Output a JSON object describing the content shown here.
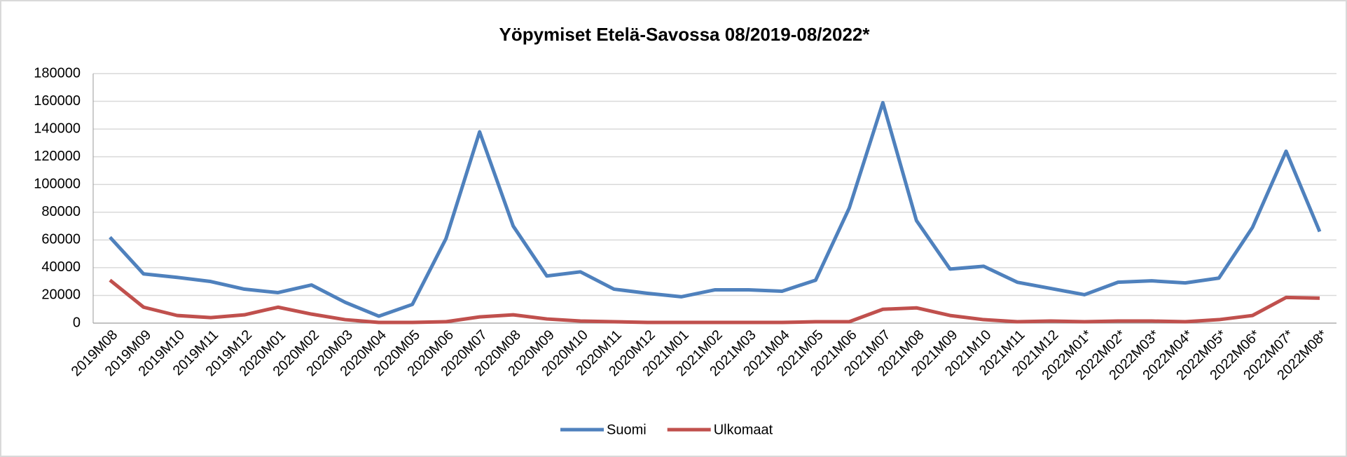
{
  "chart_data": {
    "type": "line",
    "title": "Yöpymiset Etelä-Savossa 08/2019-08/2022*",
    "categories": [
      "2019M08",
      "2019M09",
      "2019M10",
      "2019M11",
      "2019M12",
      "2020M01",
      "2020M02",
      "2020M03",
      "2020M04",
      "2020M05",
      "2020M06",
      "2020M07",
      "2020M08",
      "2020M09",
      "2020M10",
      "2020M11",
      "2020M12",
      "2021M01",
      "2021M02",
      "2021M03",
      "2021M04",
      "2021M05",
      "2021M06",
      "2021M07",
      "2021M08",
      "2021M09",
      "2021M10",
      "2021M11",
      "2021M12",
      "2022M01*",
      "2022M02*",
      "2022M03*",
      "2022M04*",
      "2022M05*",
      "2022M06*",
      "2022M07*",
      "2022M08*"
    ],
    "series": [
      {
        "name": "Suomi",
        "color": "#4f81bd",
        "values": [
          62000,
          35500,
          33000,
          30000,
          24500,
          22000,
          27500,
          15000,
          5000,
          13500,
          61000,
          138000,
          70000,
          34000,
          37000,
          24500,
          21500,
          19000,
          24000,
          24000,
          23000,
          31000,
          83000,
          159000,
          74000,
          39000,
          41000,
          29500,
          25000,
          20500,
          29500,
          30500,
          29000,
          32500,
          69000,
          124000,
          66000
        ]
      },
      {
        "name": "Ulkomaat",
        "color": "#c0504d",
        "values": [
          31000,
          11500,
          5500,
          4000,
          6000,
          11500,
          6500,
          2500,
          500,
          500,
          1000,
          4500,
          6000,
          3000,
          1500,
          1000,
          500,
          500,
          500,
          500,
          500,
          1000,
          1000,
          10000,
          11000,
          5500,
          2500,
          1000,
          1500,
          1000,
          1500,
          1500,
          1000,
          2500,
          5500,
          18500,
          18000
        ]
      }
    ],
    "ylim": [
      0,
      180000
    ],
    "yticks": [
      0,
      20000,
      40000,
      60000,
      80000,
      100000,
      120000,
      140000,
      160000,
      180000
    ],
    "grid": true,
    "legend": "bottom"
  }
}
